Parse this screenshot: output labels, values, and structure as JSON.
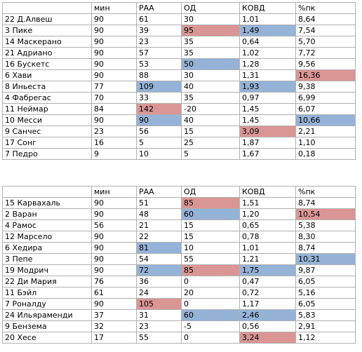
{
  "table1": {
    "headers": [
      "",
      "мин",
      "РАА",
      "ОД",
      "КОВД",
      "%пк"
    ],
    "rows": [
      {
        "cells": [
          "22 Д.Алвеш",
          "90",
          "61",
          "30",
          "1,01",
          "8,64"
        ],
        "hl": [
          "",
          "",
          "",
          "",
          "",
          ""
        ]
      },
      {
        "cells": [
          "3 Пике",
          "90",
          "39",
          "95",
          "1,49",
          "7,54"
        ],
        "hl": [
          "",
          "",
          "",
          "red",
          "blue",
          ""
        ]
      },
      {
        "cells": [
          "14 Маскерано",
          "90",
          "23",
          "35",
          "0,64",
          "5,70"
        ],
        "hl": [
          "",
          "",
          "",
          "",
          "",
          ""
        ]
      },
      {
        "cells": [
          "21 Адриано",
          "90",
          "57",
          "35",
          "1,02",
          "7,72"
        ],
        "hl": [
          "",
          "",
          "",
          "",
          "",
          ""
        ]
      },
      {
        "cells": [
          "16 Бускетс",
          "90",
          "53",
          "50",
          "1,28",
          "9,56"
        ],
        "hl": [
          "",
          "",
          "",
          "blue",
          "",
          ""
        ]
      },
      {
        "cells": [
          "6 Хави",
          "90",
          "88",
          "30",
          "1,31",
          "16,36"
        ],
        "hl": [
          "",
          "",
          "",
          "",
          "",
          "red"
        ]
      },
      {
        "cells": [
          "8 Иньеста",
          "77",
          "109",
          "40",
          "1,93",
          "9,38"
        ],
        "hl": [
          "",
          "",
          "blue",
          "",
          "blue",
          ""
        ]
      },
      {
        "cells": [
          "4 Фабрегас",
          "70",
          "33",
          "35",
          "0,97",
          "6,99"
        ],
        "hl": [
          "",
          "",
          "",
          "",
          "",
          ""
        ]
      },
      {
        "cells": [
          "11 Неймар",
          "84",
          "142",
          "-20",
          "1,45",
          "6,07"
        ],
        "hl": [
          "",
          "",
          "red",
          "",
          "",
          ""
        ]
      },
      {
        "cells": [
          "10 Месси",
          "90",
          "90",
          "40",
          "1,45",
          "10,66"
        ],
        "hl": [
          "",
          "",
          "blue",
          "",
          "",
          "blue"
        ]
      },
      {
        "cells": [
          "9 Санчес",
          "23",
          "56",
          "15",
          "3,09",
          "2,21"
        ],
        "hl": [
          "",
          "",
          "",
          "",
          "red",
          ""
        ]
      },
      {
        "cells": [
          "17 Сонг",
          "16",
          "5",
          "25",
          "1,87",
          "1,10"
        ],
        "hl": [
          "",
          "",
          "",
          "",
          "",
          ""
        ]
      },
      {
        "cells": [
          "7 Педро",
          "9",
          "10",
          "5",
          "1,67",
          "0,18"
        ],
        "hl": [
          "",
          "",
          "",
          "",
          "",
          ""
        ]
      }
    ]
  },
  "table2": {
    "headers": [
      "",
      "мин",
      "РАА",
      "ОД",
      "КОВД",
      "%пк"
    ],
    "rows": [
      {
        "cells": [
          "15 Карвахаль",
          "90",
          "51",
          "85",
          "1,51",
          "8,74"
        ],
        "hl": [
          "",
          "",
          "",
          "red",
          "",
          ""
        ]
      },
      {
        "cells": [
          "2 Варан",
          "90",
          "48",
          "60",
          "1,20",
          "10,54"
        ],
        "hl": [
          "",
          "",
          "",
          "blue",
          "",
          "red"
        ]
      },
      {
        "cells": [
          "4 Рамос",
          "56",
          "21",
          "15",
          "0,65",
          "5,38"
        ],
        "hl": [
          "",
          "",
          "",
          "",
          "",
          ""
        ]
      },
      {
        "cells": [
          "12 Марсело",
          "90",
          "22",
          "15",
          "0,78",
          "8,30"
        ],
        "hl": [
          "",
          "",
          "",
          "",
          "",
          ""
        ]
      },
      {
        "cells": [
          "6 Хедира",
          "90",
          "81",
          "10",
          "1,01",
          "8,74"
        ],
        "hl": [
          "",
          "",
          "blue",
          "",
          "",
          ""
        ]
      },
      {
        "cells": [
          "3 Пепе",
          "90",
          "54",
          "55",
          "1,21",
          "10,31"
        ],
        "hl": [
          "",
          "",
          "",
          "",
          "",
          "blue"
        ]
      },
      {
        "cells": [
          "19 Модрич",
          "90",
          "72",
          "85",
          "1,75",
          "9,87"
        ],
        "hl": [
          "",
          "",
          "blue",
          "red",
          "blue",
          ""
        ]
      },
      {
        "cells": [
          "22 Ди Мария",
          "76",
          "36",
          "0",
          "0,47",
          "6,05"
        ],
        "hl": [
          "",
          "",
          "",
          "",
          "",
          ""
        ]
      },
      {
        "cells": [
          "11 Бэйл",
          "61",
          "24",
          "20",
          "0,72",
          "5,16"
        ],
        "hl": [
          "",
          "",
          "",
          "",
          "",
          ""
        ]
      },
      {
        "cells": [
          "7 Роналду",
          "90",
          "105",
          "0",
          "1,17",
          "6,05"
        ],
        "hl": [
          "",
          "",
          "red",
          "",
          "",
          ""
        ]
      },
      {
        "cells": [
          "24 Ильяраменди",
          "37",
          "31",
          "60",
          "2,46",
          "5,83"
        ],
        "hl": [
          "",
          "",
          "",
          "blue",
          "blue",
          ""
        ]
      },
      {
        "cells": [
          "9 Бензема",
          "32",
          "23",
          "-5",
          "0,56",
          "2,91"
        ],
        "hl": [
          "",
          "",
          "",
          "",
          "",
          ""
        ]
      },
      {
        "cells": [
          "20 Хесе",
          "17",
          "55",
          "0",
          "3,24",
          "1,12"
        ],
        "hl": [
          "",
          "",
          "",
          "",
          "red",
          ""
        ]
      }
    ]
  },
  "colors": {
    "red": "#da9694",
    "blue": "#95b3d7"
  }
}
